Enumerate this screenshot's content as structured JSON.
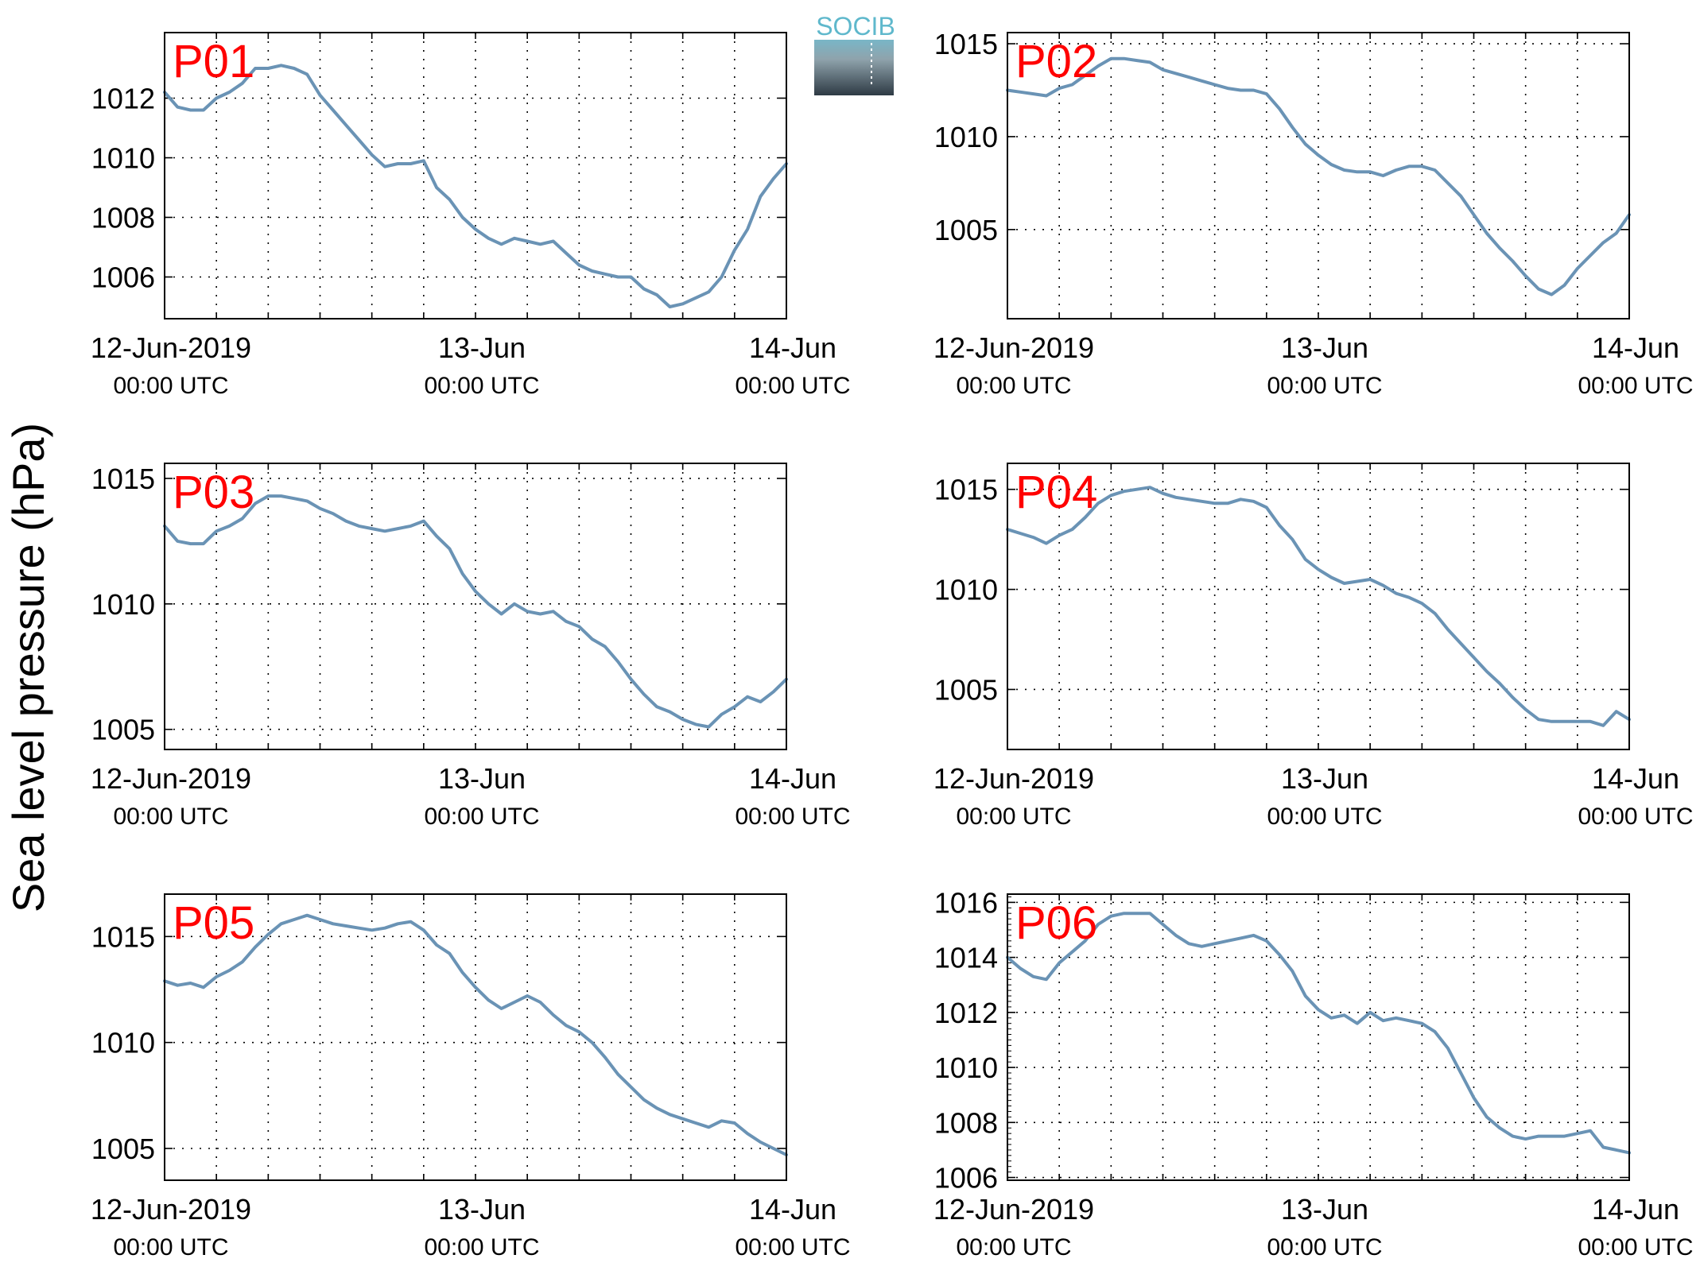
{
  "figure": {
    "ylabel": "Sea level pressure (hPa)",
    "logo": "SOCIB",
    "line_color": "#6A93B5",
    "panel_label_color": "#FF0000"
  },
  "chart_data": [
    {
      "type": "line",
      "label": "P01",
      "xlim": [
        0,
        48
      ],
      "ylim": [
        1004.6,
        1014.2
      ],
      "xticks": [
        0,
        24,
        48
      ],
      "xtick_labels": [
        [
          "12-Jun-2019",
          "00:00 UTC"
        ],
        [
          "13-Jun",
          "00:00 UTC"
        ],
        [
          "14-Jun",
          "00:00 UTC"
        ]
      ],
      "yticks": [
        1006,
        1008,
        1010,
        1012
      ],
      "x": [
        0,
        1,
        2,
        3,
        4,
        5,
        6,
        7,
        8,
        9,
        10,
        11,
        12,
        13,
        14,
        15,
        16,
        17,
        18,
        19,
        20,
        21,
        22,
        23,
        24,
        25,
        26,
        27,
        28,
        29,
        30,
        31,
        32,
        33,
        34,
        35,
        36,
        37,
        38,
        39,
        40,
        41,
        42,
        43,
        44,
        45,
        46,
        47,
        48
      ],
      "y": [
        1012.2,
        1011.7,
        1011.6,
        1011.6,
        1012.0,
        1012.2,
        1012.5,
        1013.0,
        1013.0,
        1013.1,
        1013.0,
        1012.8,
        1012.1,
        1011.6,
        1011.1,
        1010.6,
        1010.1,
        1009.7,
        1009.8,
        1009.8,
        1009.9,
        1009.0,
        1008.6,
        1008.0,
        1007.6,
        1007.3,
        1007.1,
        1007.3,
        1007.2,
        1007.1,
        1007.2,
        1006.8,
        1006.4,
        1006.2,
        1006.1,
        1006.0,
        1006.0,
        1005.6,
        1005.4,
        1005.0,
        1005.1,
        1005.3,
        1005.5,
        1006.0,
        1006.9,
        1007.6,
        1008.7,
        1009.3,
        1009.8
      ]
    },
    {
      "type": "line",
      "label": "P02",
      "xlim": [
        0,
        48
      ],
      "ylim": [
        1000.2,
        1015.6
      ],
      "xticks": [
        0,
        24,
        48
      ],
      "xtick_labels": [
        [
          "12-Jun-2019",
          "00:00 UTC"
        ],
        [
          "13-Jun",
          "00:00 UTC"
        ],
        [
          "14-Jun",
          "00:00 UTC"
        ]
      ],
      "yticks": [
        1005,
        1010,
        1015
      ],
      "x": [
        0,
        1,
        2,
        3,
        4,
        5,
        6,
        7,
        8,
        9,
        10,
        11,
        12,
        13,
        14,
        15,
        16,
        17,
        18,
        19,
        20,
        21,
        22,
        23,
        24,
        25,
        26,
        27,
        28,
        29,
        30,
        31,
        32,
        33,
        34,
        35,
        36,
        37,
        38,
        39,
        40,
        41,
        42,
        43,
        44,
        45,
        46,
        47,
        48
      ],
      "y": [
        1012.5,
        1012.4,
        1012.3,
        1012.2,
        1012.6,
        1012.8,
        1013.3,
        1013.8,
        1014.2,
        1014.2,
        1014.1,
        1014.0,
        1013.6,
        1013.4,
        1013.2,
        1013.0,
        1012.8,
        1012.6,
        1012.5,
        1012.5,
        1012.3,
        1011.5,
        1010.5,
        1009.6,
        1009.0,
        1008.5,
        1008.2,
        1008.1,
        1008.1,
        1007.9,
        1008.2,
        1008.4,
        1008.4,
        1008.2,
        1007.5,
        1006.8,
        1005.8,
        1004.8,
        1004.0,
        1003.3,
        1002.5,
        1001.8,
        1001.5,
        1002.0,
        1002.9,
        1003.6,
        1004.3,
        1004.8,
        1005.8
      ]
    },
    {
      "type": "line",
      "label": "P03",
      "xlim": [
        0,
        48
      ],
      "ylim": [
        1004.2,
        1015.6
      ],
      "xticks": [
        0,
        24,
        48
      ],
      "xtick_labels": [
        [
          "12-Jun-2019",
          "00:00 UTC"
        ],
        [
          "13-Jun",
          "00:00 UTC"
        ],
        [
          "14-Jun",
          "00:00 UTC"
        ]
      ],
      "yticks": [
        1005,
        1010,
        1015
      ],
      "x": [
        0,
        1,
        2,
        3,
        4,
        5,
        6,
        7,
        8,
        9,
        10,
        11,
        12,
        13,
        14,
        15,
        16,
        17,
        18,
        19,
        20,
        21,
        22,
        23,
        24,
        25,
        26,
        27,
        28,
        29,
        30,
        31,
        32,
        33,
        34,
        35,
        36,
        37,
        38,
        39,
        40,
        41,
        42,
        43,
        44,
        45,
        46,
        47,
        48
      ],
      "y": [
        1013.1,
        1012.5,
        1012.4,
        1012.4,
        1012.9,
        1013.1,
        1013.4,
        1014.0,
        1014.3,
        1014.3,
        1014.2,
        1014.1,
        1013.8,
        1013.6,
        1013.3,
        1013.1,
        1013.0,
        1012.9,
        1013.0,
        1013.1,
        1013.3,
        1012.7,
        1012.2,
        1011.2,
        1010.5,
        1010.0,
        1009.6,
        1010.0,
        1009.7,
        1009.6,
        1009.7,
        1009.3,
        1009.1,
        1008.6,
        1008.3,
        1007.7,
        1007.0,
        1006.4,
        1005.9,
        1005.7,
        1005.4,
        1005.2,
        1005.1,
        1005.6,
        1005.9,
        1006.3,
        1006.1,
        1006.5,
        1007.0
      ]
    },
    {
      "type": "line",
      "label": "P04",
      "xlim": [
        0,
        48
      ],
      "ylim": [
        1002.0,
        1016.3
      ],
      "xticks": [
        0,
        24,
        48
      ],
      "xtick_labels": [
        [
          "12-Jun-2019",
          "00:00 UTC"
        ],
        [
          "13-Jun",
          "00:00 UTC"
        ],
        [
          "14-Jun",
          "00:00 UTC"
        ]
      ],
      "yticks": [
        1005,
        1010,
        1015
      ],
      "x": [
        0,
        1,
        2,
        3,
        4,
        5,
        6,
        7,
        8,
        9,
        10,
        11,
        12,
        13,
        14,
        15,
        16,
        17,
        18,
        19,
        20,
        21,
        22,
        23,
        24,
        25,
        26,
        27,
        28,
        29,
        30,
        31,
        32,
        33,
        34,
        35,
        36,
        37,
        38,
        39,
        40,
        41,
        42,
        43,
        44,
        45,
        46,
        47,
        48
      ],
      "y": [
        1013.0,
        1012.8,
        1012.6,
        1012.3,
        1012.7,
        1013.0,
        1013.6,
        1014.3,
        1014.7,
        1014.9,
        1015.0,
        1015.1,
        1014.8,
        1014.6,
        1014.5,
        1014.4,
        1014.3,
        1014.3,
        1014.5,
        1014.4,
        1014.1,
        1013.2,
        1012.5,
        1011.5,
        1011.0,
        1010.6,
        1010.3,
        1010.4,
        1010.5,
        1010.2,
        1009.8,
        1009.6,
        1009.3,
        1008.8,
        1008.0,
        1007.3,
        1006.6,
        1005.9,
        1005.3,
        1004.6,
        1004.0,
        1003.5,
        1003.4,
        1003.4,
        1003.4,
        1003.4,
        1003.2,
        1003.9,
        1003.5
      ]
    },
    {
      "type": "line",
      "label": "P05",
      "xlim": [
        0,
        48
      ],
      "ylim": [
        1003.5,
        1017.0
      ],
      "xticks": [
        0,
        24,
        48
      ],
      "xtick_labels": [
        [
          "12-Jun-2019",
          "00:00 UTC"
        ],
        [
          "13-Jun",
          "00:00 UTC"
        ],
        [
          "14-Jun",
          "00:00 UTC"
        ]
      ],
      "yticks": [
        1005,
        1010,
        1015
      ],
      "x": [
        0,
        1,
        2,
        3,
        4,
        5,
        6,
        7,
        8,
        9,
        10,
        11,
        12,
        13,
        14,
        15,
        16,
        17,
        18,
        19,
        20,
        21,
        22,
        23,
        24,
        25,
        26,
        27,
        28,
        29,
        30,
        31,
        32,
        33,
        34,
        35,
        36,
        37,
        38,
        39,
        40,
        41,
        42,
        43,
        44,
        45,
        46,
        47,
        48
      ],
      "y": [
        1012.9,
        1012.7,
        1012.8,
        1012.6,
        1013.1,
        1013.4,
        1013.8,
        1014.5,
        1015.1,
        1015.6,
        1015.8,
        1016.0,
        1015.8,
        1015.6,
        1015.5,
        1015.4,
        1015.3,
        1015.4,
        1015.6,
        1015.7,
        1015.3,
        1014.6,
        1014.2,
        1013.3,
        1012.6,
        1012.0,
        1011.6,
        1011.9,
        1012.2,
        1011.9,
        1011.3,
        1010.8,
        1010.5,
        1010.0,
        1009.3,
        1008.5,
        1007.9,
        1007.3,
        1006.9,
        1006.6,
        1006.4,
        1006.2,
        1006.0,
        1006.3,
        1006.2,
        1005.7,
        1005.3,
        1005.0,
        1004.7
      ]
    },
    {
      "type": "line",
      "label": "P06",
      "xlim": [
        0,
        48
      ],
      "ylim": [
        1005.9,
        1016.3
      ],
      "xticks": [
        0,
        24,
        48
      ],
      "xtick_labels": [
        [
          "12-Jun-2019",
          "00:00 UTC"
        ],
        [
          "13-Jun",
          "00:00 UTC"
        ],
        [
          "14-Jun",
          "00:00 UTC"
        ]
      ],
      "yticks": [
        1006,
        1008,
        1010,
        1012,
        1014,
        1016
      ],
      "x": [
        0,
        1,
        2,
        3,
        4,
        5,
        6,
        7,
        8,
        9,
        10,
        11,
        12,
        13,
        14,
        15,
        16,
        17,
        18,
        19,
        20,
        21,
        22,
        23,
        24,
        25,
        26,
        27,
        28,
        29,
        30,
        31,
        32,
        33,
        34,
        35,
        36,
        37,
        38,
        39,
        40,
        41,
        42,
        43,
        44,
        45,
        46,
        47,
        48
      ],
      "y": [
        1014.0,
        1013.6,
        1013.3,
        1013.2,
        1013.8,
        1014.2,
        1014.6,
        1015.2,
        1015.5,
        1015.6,
        1015.6,
        1015.6,
        1015.2,
        1014.8,
        1014.5,
        1014.4,
        1014.5,
        1014.6,
        1014.7,
        1014.8,
        1014.6,
        1014.1,
        1013.5,
        1012.6,
        1012.1,
        1011.8,
        1011.9,
        1011.6,
        1012.0,
        1011.7,
        1011.8,
        1011.7,
        1011.6,
        1011.3,
        1010.7,
        1009.8,
        1008.9,
        1008.2,
        1007.8,
        1007.5,
        1007.4,
        1007.5,
        1007.5,
        1007.5,
        1007.6,
        1007.7,
        1007.1,
        1007.0,
        1006.9
      ]
    }
  ]
}
